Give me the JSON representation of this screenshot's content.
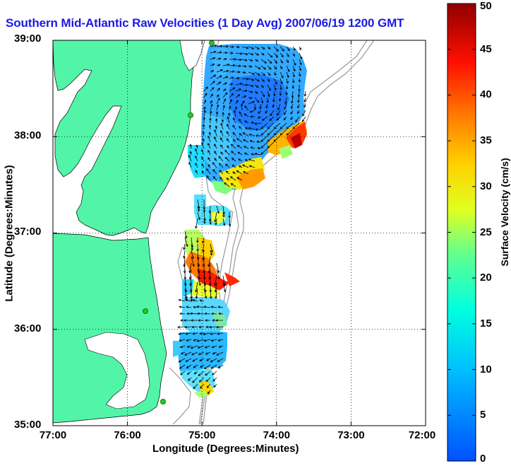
{
  "title": "Southern Mid-Atlantic Raw Velocities (1 Day Avg) 2007/06/19 1200 GMT",
  "chart_data": {
    "type": "map-vector-field",
    "xlabel": "Longitude (Degrees:Minutes)",
    "ylabel": "Latitude (Degrees:Minutes)",
    "colorbar_label": "Surface Velocity (cm/s)",
    "x_ticks": [
      "77:00",
      "76:00",
      "75:00",
      "74:00",
      "73:00",
      "72:00"
    ],
    "y_ticks": [
      "39:00",
      "38:00",
      "37:00",
      "36:00",
      "35:00"
    ],
    "x_range_deg_west": [
      77,
      72
    ],
    "y_range_deg_north": [
      35,
      39
    ],
    "colorbar_ticks": [
      "50",
      "45",
      "40",
      "35",
      "30",
      "25",
      "20",
      "15",
      "10",
      "5",
      "0"
    ],
    "colorbar_range": [
      0,
      50
    ],
    "grid": "dotted",
    "colors": {
      "land": "#52f5a8",
      "title": "#1a1ae6",
      "bathymetry": "#999999",
      "stations": "#22cc22"
    }
  }
}
